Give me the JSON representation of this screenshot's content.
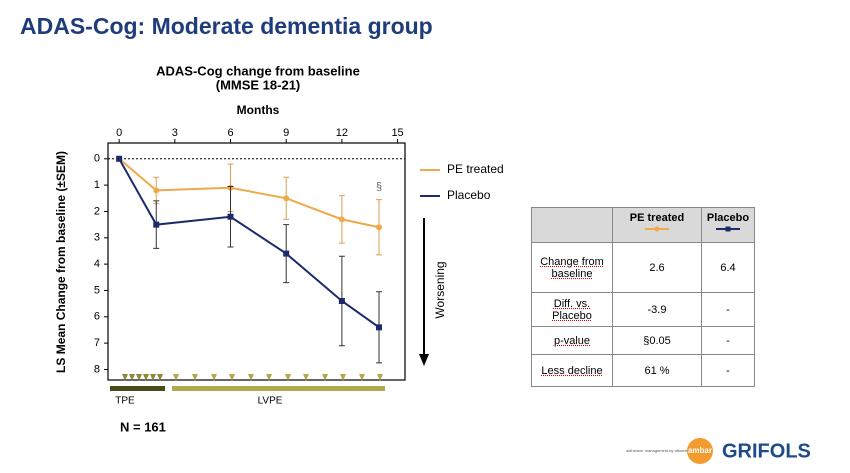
{
  "slide_title": "ADAS-Cog: Moderate dementia group",
  "chart_data": {
    "type": "line",
    "title": "ADAS-Cog change from baseline",
    "subtitle": "(MMSE 18-21)",
    "x_label": "Months",
    "y_label": "LS Mean Change from baseline (±SEM)",
    "x": [
      0,
      2,
      6,
      9,
      12,
      14
    ],
    "xlim": [
      -0.6,
      15.4
    ],
    "xticks": [
      0,
      3,
      6,
      9,
      12,
      15
    ],
    "ylim": [
      -0.6,
      8.4
    ],
    "yticks": [
      0,
      1,
      2,
      3,
      4,
      5,
      6,
      7,
      8
    ],
    "y_reversed": true,
    "reference_line": 0,
    "series": [
      {
        "name": "PE treated",
        "color": "#f0a94a",
        "marker": "circle",
        "values": [
          0,
          1.2,
          1.1,
          1.5,
          2.3,
          2.6
        ],
        "errors": [
          0,
          0.5,
          0.9,
          0.8,
          0.9,
          1.05
        ]
      },
      {
        "name": "Placebo",
        "color": "#1b2a6b",
        "marker": "square",
        "values": [
          0,
          2.5,
          2.2,
          3.6,
          5.4,
          6.4
        ],
        "errors": [
          0,
          0.9,
          1.15,
          1.1,
          1.7,
          1.35
        ]
      }
    ],
    "legend": "right",
    "annotations": [
      "§",
      "Worsening",
      "TPE",
      "LVPE"
    ]
  },
  "n_label": "N = 161",
  "table": {
    "header": [
      "PE treated",
      "Placebo"
    ],
    "rows": [
      [
        "Change from baseline",
        "2.6",
        "6.4"
      ],
      [
        "Diff. vs. Placebo",
        "-3.9",
        "-"
      ],
      [
        "p-value",
        "§0.05",
        "-"
      ],
      [
        "Less decline",
        "61 %",
        "-"
      ]
    ]
  },
  "logo": {
    "tagline": "alzheimer management by albumin replacement",
    "badge": "ambar",
    "brand": "GRIFOLS"
  }
}
